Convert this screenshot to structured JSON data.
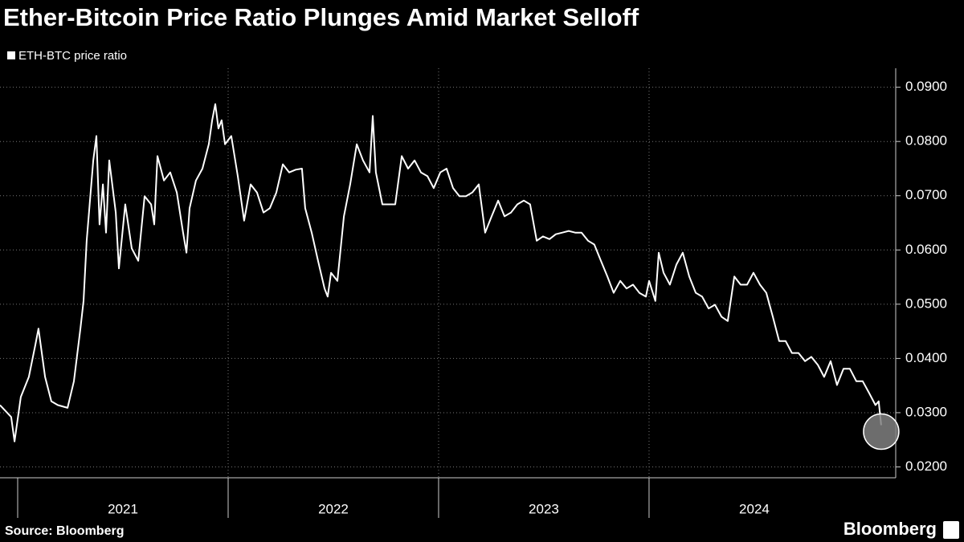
{
  "chart_data": {
    "type": "line",
    "title": "Ether-Bitcoin Price Ratio Plunges Amid Market Selloff",
    "source": "Source: Bloomberg",
    "brand": "Bloomberg",
    "xlim": [
      2020.916,
      2025.172
    ],
    "xticks": [
      2021,
      2022,
      2023,
      2024
    ],
    "ylim": [
      0.018,
      0.0935
    ],
    "yticks": [
      {
        "value": 0.02,
        "label": "0.0200"
      },
      {
        "value": 0.03,
        "label": "0.0300"
      },
      {
        "value": 0.04,
        "label": "0.0400"
      },
      {
        "value": 0.05,
        "label": "0.0500"
      },
      {
        "value": 0.06,
        "label": "0.0600"
      },
      {
        "value": 0.07,
        "label": "0.0700"
      },
      {
        "value": 0.08,
        "label": "0.0800"
      },
      {
        "value": 0.09,
        "label": "0.0900"
      }
    ],
    "grid": true,
    "legend": "top-left",
    "highlight_last": true,
    "series": [
      {
        "name": "ETH-BTC price ratio",
        "color": "#ffffff",
        "x": [
          2020.916,
          2020.969,
          2020.985,
          2021.015,
          2021.053,
          2021.084,
          2021.099,
          2021.13,
          2021.16,
          2021.191,
          2021.237,
          2021.267,
          2021.298,
          2021.313,
          2021.328,
          2021.359,
          2021.374,
          2021.389,
          2021.405,
          2021.42,
          2021.435,
          2021.466,
          2021.481,
          2021.511,
          2021.542,
          2021.573,
          2021.603,
          2021.634,
          2021.649,
          2021.664,
          2021.695,
          2021.725,
          2021.756,
          2021.786,
          2021.802,
          2021.817,
          2021.847,
          2021.878,
          2021.908,
          2021.924,
          2021.939,
          2021.954,
          2021.969,
          2021.985,
          2022.015,
          2022.046,
          2022.076,
          2022.107,
          2022.137,
          2022.168,
          2022.198,
          2022.229,
          2022.26,
          2022.29,
          2022.321,
          2022.351,
          2022.366,
          2022.397,
          2022.427,
          2022.458,
          2022.473,
          2022.489,
          2022.519,
          2022.55,
          2022.58,
          2022.611,
          2022.641,
          2022.672,
          2022.687,
          2022.702,
          2022.733,
          2022.763,
          2022.794,
          2022.825,
          2022.855,
          2022.886,
          2022.916,
          2022.947,
          2022.977,
          2023.008,
          2023.038,
          2023.069,
          2023.099,
          2023.13,
          2023.16,
          2023.191,
          2023.221,
          2023.252,
          2023.283,
          2023.313,
          2023.344,
          2023.374,
          2023.405,
          2023.435,
          2023.466,
          2023.496,
          2023.527,
          2023.557,
          2023.588,
          2023.618,
          2023.649,
          2023.679,
          2023.71,
          2023.74,
          2023.771,
          2023.802,
          2023.832,
          2023.863,
          2023.893,
          2023.924,
          2023.954,
          2023.985,
          2024.0,
          2024.03,
          2024.046,
          2024.069,
          2024.099,
          2024.13,
          2024.16,
          2024.191,
          2024.222,
          2024.252,
          2024.283,
          2024.313,
          2024.344,
          2024.374,
          2024.405,
          2024.435,
          2024.466,
          2024.496,
          2024.527,
          2024.557,
          2024.588,
          2024.618,
          2024.649,
          2024.679,
          2024.71,
          2024.741,
          2024.771,
          2024.802,
          2024.832,
          2024.863,
          2024.893,
          2024.924,
          2024.954,
          2024.985,
          2025.015,
          2025.046,
          2025.076,
          2025.091,
          2025.103
        ],
        "values": [
          0.0314,
          0.0292,
          0.0247,
          0.0329,
          0.0366,
          0.0425,
          0.0455,
          0.0366,
          0.0321,
          0.0314,
          0.0309,
          0.0358,
          0.0455,
          0.0506,
          0.0617,
          0.0765,
          0.081,
          0.0647,
          0.0721,
          0.0632,
          0.0765,
          0.0669,
          0.0566,
          0.0684,
          0.0603,
          0.058,
          0.0699,
          0.0684,
          0.0647,
          0.0773,
          0.0728,
          0.0743,
          0.0706,
          0.0632,
          0.0595,
          0.0677,
          0.0728,
          0.075,
          0.0795,
          0.0839,
          0.0869,
          0.0824,
          0.0839,
          0.0795,
          0.081,
          0.0736,
          0.0654,
          0.0721,
          0.0706,
          0.0669,
          0.0677,
          0.0706,
          0.0758,
          0.0743,
          0.0748,
          0.075,
          0.0677,
          0.0632,
          0.058,
          0.0529,
          0.0514,
          0.0558,
          0.0543,
          0.0662,
          0.0721,
          0.0795,
          0.0765,
          0.0743,
          0.0847,
          0.0743,
          0.0684,
          0.0684,
          0.0684,
          0.0773,
          0.075,
          0.0765,
          0.0743,
          0.0736,
          0.0714,
          0.0743,
          0.075,
          0.0714,
          0.0699,
          0.0699,
          0.0706,
          0.0721,
          0.0632,
          0.0662,
          0.0691,
          0.0662,
          0.0669,
          0.0684,
          0.0691,
          0.0684,
          0.0617,
          0.0625,
          0.062,
          0.0629,
          0.0632,
          0.0635,
          0.0632,
          0.0632,
          0.0617,
          0.061,
          0.058,
          0.0551,
          0.0521,
          0.0543,
          0.0529,
          0.0536,
          0.0521,
          0.0514,
          0.0543,
          0.0506,
          0.0595,
          0.0558,
          0.0536,
          0.0573,
          0.0595,
          0.0551,
          0.0521,
          0.0514,
          0.0492,
          0.0499,
          0.0477,
          0.0469,
          0.0551,
          0.0536,
          0.0536,
          0.0558,
          0.0536,
          0.0521,
          0.0477,
          0.0432,
          0.0432,
          0.041,
          0.041,
          0.0395,
          0.0403,
          0.0388,
          0.0366,
          0.0395,
          0.0351,
          0.0381,
          0.0381,
          0.0358,
          0.0358,
          0.0336,
          0.0314,
          0.0321,
          0.0277
        ]
      }
    ]
  }
}
